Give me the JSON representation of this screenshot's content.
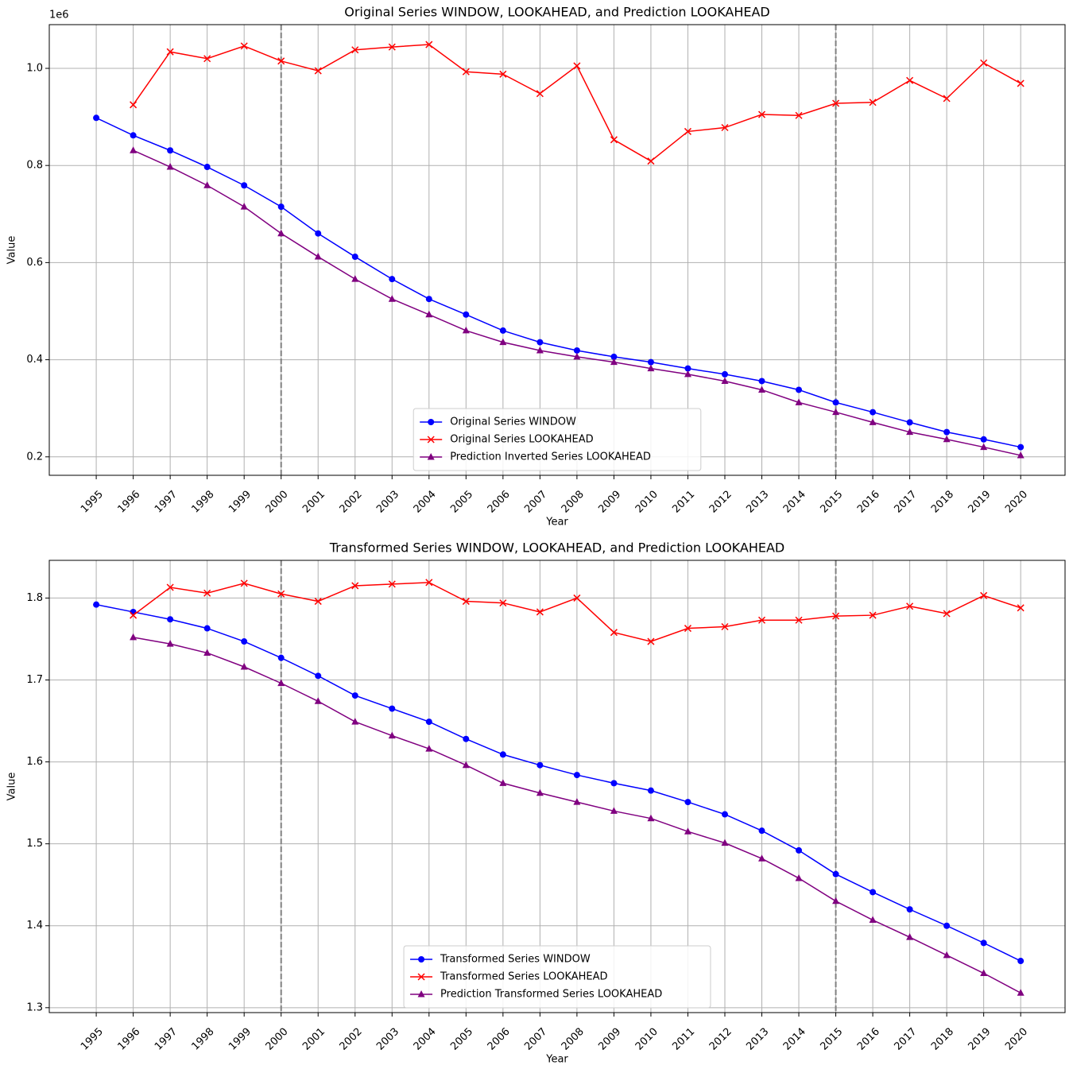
{
  "chart_data": [
    {
      "type": "line",
      "title": "Original Series WINDOW, LOOKAHEAD, and Prediction LOOKAHEAD",
      "xlabel": "Year",
      "ylabel": "Value",
      "offset_text": "1e6",
      "x": [
        1995,
        1996,
        1997,
        1998,
        1999,
        2000,
        2001,
        2002,
        2003,
        2004,
        2005,
        2006,
        2007,
        2008,
        2009,
        2010,
        2011,
        2012,
        2013,
        2014,
        2015,
        2016,
        2017,
        2018,
        2019,
        2020
      ],
      "xlim": [
        1993.73,
        2021.2
      ],
      "xticks": [
        1995,
        1996,
        1997,
        1998,
        1999,
        2000,
        2001,
        2002,
        2003,
        2004,
        2005,
        2006,
        2007,
        2008,
        2009,
        2010,
        2011,
        2012,
        2013,
        2014,
        2015,
        2016,
        2017,
        2018,
        2019,
        2020
      ],
      "ylim": [
        0.162,
        1.09
      ],
      "yticks": [
        0.2,
        0.4,
        0.6,
        0.8,
        {
          "value": 1,
          "label": "1.0"
        }
      ],
      "grid": true,
      "legend": "lower center",
      "vlines": [
        2000,
        2015
      ],
      "series": [
        {
          "name": "Original Series WINDOW",
          "color": "blue",
          "marker": "circle",
          "values": [
            0.898,
            0.862,
            0.831,
            0.797,
            0.759,
            0.715,
            0.66,
            0.612,
            0.566,
            0.525,
            0.493,
            0.46,
            0.436,
            0.419,
            0.406,
            0.395,
            0.382,
            0.37,
            0.356,
            0.338,
            0.312,
            0.292,
            0.271,
            0.251,
            0.236,
            0.22
          ]
        },
        {
          "name": "Original Series LOOKAHEAD",
          "color": "red",
          "marker": "x",
          "values": [
            null,
            0.925,
            1.034,
            1.02,
            1.046,
            1.015,
            0.995,
            1.038,
            1.044,
            1.049,
            0.993,
            0.988,
            0.948,
            1.005,
            0.853,
            0.809,
            0.87,
            0.878,
            0.905,
            0.903,
            0.928,
            0.93,
            0.975,
            0.938,
            1.011,
            0.969
          ]
        },
        {
          "name": "Prediction Inverted Series LOOKAHEAD",
          "color": "purple",
          "marker": "triangle",
          "values": [
            null,
            0.831,
            0.797,
            0.759,
            0.715,
            0.66,
            0.612,
            0.566,
            0.525,
            0.493,
            0.46,
            0.436,
            0.419,
            0.406,
            0.395,
            0.382,
            0.37,
            0.356,
            0.338,
            0.312,
            0.292,
            0.271,
            0.251,
            0.236,
            0.22,
            0.203
          ]
        }
      ]
    },
    {
      "type": "line",
      "title": "Transformed Series WINDOW, LOOKAHEAD, and Prediction LOOKAHEAD",
      "xlabel": "Year",
      "ylabel": "Value",
      "x": [
        1995,
        1996,
        1997,
        1998,
        1999,
        2000,
        2001,
        2002,
        2003,
        2004,
        2005,
        2006,
        2007,
        2008,
        2009,
        2010,
        2011,
        2012,
        2013,
        2014,
        2015,
        2016,
        2017,
        2018,
        2019,
        2020
      ],
      "xlim": [
        1993.73,
        2021.2
      ],
      "xticks": [
        1995,
        1996,
        1997,
        1998,
        1999,
        2000,
        2001,
        2002,
        2003,
        2004,
        2005,
        2006,
        2007,
        2008,
        2009,
        2010,
        2011,
        2012,
        2013,
        2014,
        2015,
        2016,
        2017,
        2018,
        2019,
        2020
      ],
      "ylim": [
        1.294,
        1.846
      ],
      "yticks": [
        1.3,
        1.4,
        1.5,
        1.6,
        1.7,
        1.8
      ],
      "grid": true,
      "legend": "lower center",
      "vlines": [
        2000,
        2015
      ],
      "series": [
        {
          "name": "Transformed Series WINDOW",
          "color": "blue",
          "marker": "circle",
          "values": [
            1.792,
            1.783,
            1.774,
            1.763,
            1.747,
            1.727,
            1.705,
            1.681,
            1.665,
            1.649,
            1.628,
            1.609,
            1.596,
            1.584,
            1.574,
            1.565,
            1.551,
            1.536,
            1.516,
            1.492,
            1.463,
            1.441,
            1.42,
            1.4,
            1.379,
            1.357
          ]
        },
        {
          "name": "Transformed Series LOOKAHEAD",
          "color": "red",
          "marker": "x",
          "values": [
            null,
            1.779,
            1.813,
            1.806,
            1.818,
            1.805,
            1.796,
            1.815,
            1.817,
            1.819,
            1.796,
            1.794,
            1.783,
            1.8,
            1.758,
            1.747,
            1.763,
            1.765,
            1.773,
            1.773,
            1.778,
            1.779,
            1.79,
            1.781,
            1.803,
            1.788
          ]
        },
        {
          "name": "Prediction Transformed Series LOOKAHEAD",
          "color": "purple",
          "marker": "triangle",
          "values": [
            null,
            1.752,
            1.744,
            1.733,
            1.716,
            1.696,
            1.674,
            1.649,
            1.632,
            1.616,
            1.596,
            1.574,
            1.562,
            1.551,
            1.54,
            1.531,
            1.515,
            1.501,
            1.482,
            1.458,
            1.43,
            1.407,
            1.386,
            1.364,
            1.342,
            1.318
          ]
        }
      ]
    }
  ]
}
